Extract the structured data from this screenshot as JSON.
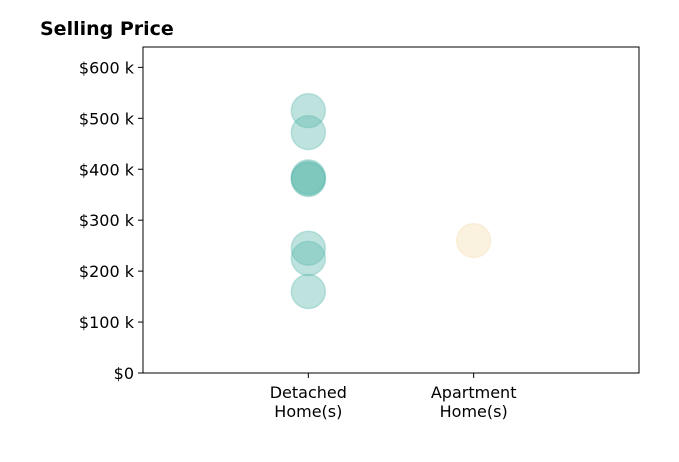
{
  "chart_data": {
    "type": "scatter",
    "title": "Selling Price",
    "xlabel": "",
    "ylabel": "",
    "categories": [
      {
        "line1": "Detached",
        "line2": "Home(s)"
      },
      {
        "line1": "Apartment",
        "line2": "Home(s)"
      }
    ],
    "x_range": [
      0,
      3
    ],
    "ylim": [
      0,
      640000
    ],
    "yticks": [
      {
        "value": 0,
        "label": "$0"
      },
      {
        "value": 100000,
        "label": "$100 k"
      },
      {
        "value": 200000,
        "label": "$200 k"
      },
      {
        "value": 300000,
        "label": "$300 k"
      },
      {
        "value": 400000,
        "label": "$400 k"
      },
      {
        "value": 500000,
        "label": "$500 k"
      },
      {
        "value": 600000,
        "label": "$600 k"
      }
    ],
    "grid": false,
    "legend": "none",
    "series": [
      {
        "category": "Detached Home(s)",
        "color": "#5db8ac",
        "values": [
          515000,
          472000,
          385000,
          382000,
          380000,
          245000,
          225000,
          160000
        ]
      },
      {
        "category": "Apartment Home(s)",
        "color": "#f5ddb0",
        "values": [
          260000
        ]
      }
    ]
  }
}
